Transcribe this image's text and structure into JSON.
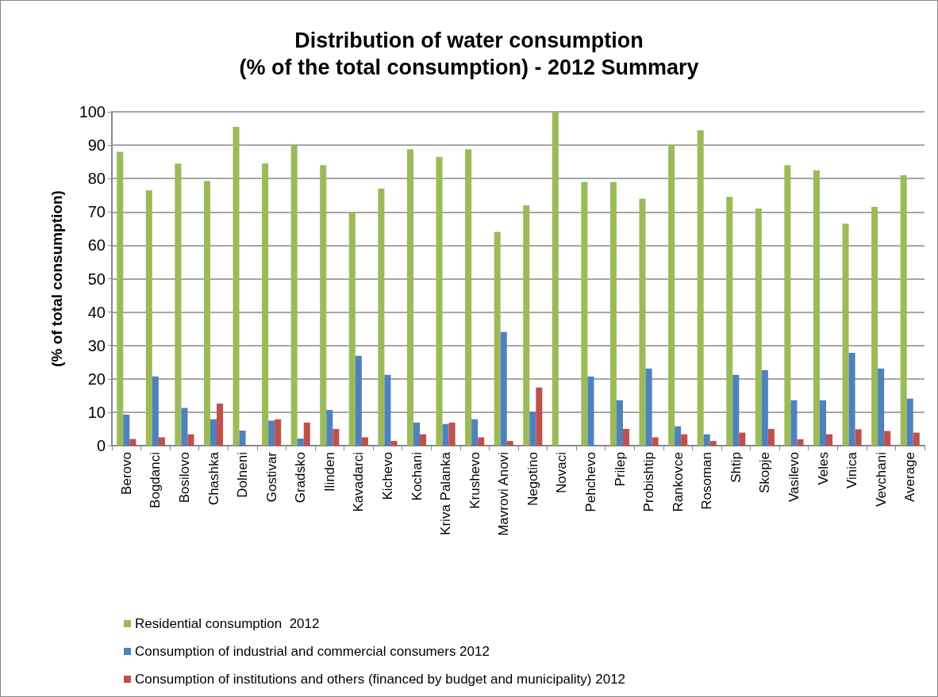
{
  "chart_data": {
    "type": "bar",
    "title": "Distribution of water consumption\n(% of the total consumption) - 2012 Summary",
    "ylabel": "(% of total consumption)",
    "categories": [
      "Berovo",
      "Bogdanci",
      "Bosilovo",
      "Chashka",
      "Dolneni",
      "Gostivar",
      "Gradsko",
      "Ilinden",
      "Kavadarci",
      "Kichevo",
      "Kochani",
      "Kriva Palanka",
      "Krushevo",
      "Mavrovi Anovi",
      "Negotino",
      "Novaci",
      "Pehchevo",
      "Prilep",
      "Probishtip",
      "Rankovce",
      "Rosoman",
      "Shtip",
      "Skopje",
      "Vasilevo",
      "Veles",
      "Vinica",
      "Vevchani",
      "Average"
    ],
    "series": [
      {
        "name": "Residential consumption  2012",
        "color": "#9bbb59",
        "values": [
          88,
          76.5,
          84.5,
          79.3,
          95.5,
          84.5,
          90,
          84,
          69.8,
          77,
          88.8,
          86.5,
          88.8,
          64,
          72,
          100,
          79,
          79,
          74,
          90,
          94.5,
          74.5,
          71,
          84,
          82.5,
          66.5,
          71.5,
          81
        ]
      },
      {
        "name": "Consumption of industrial and commercial consumers 2012",
        "color": "#4f81bd",
        "values": [
          9.3,
          20.7,
          11.3,
          7.9,
          4.5,
          7.5,
          2.1,
          10.7,
          26.9,
          21.2,
          6.9,
          6.5,
          7.9,
          34,
          10.2,
          0,
          20.7,
          13.6,
          23.1,
          5.8,
          3.4,
          21.2,
          22.6,
          13.6,
          13.6,
          27.8,
          23.1,
          14.1
        ]
      },
      {
        "name": "Consumption of institutions and others (financed by budget and municipality) 2012",
        "color": "#c0504d",
        "values": [
          2,
          2.5,
          3.4,
          12.6,
          0,
          7.9,
          6.9,
          5,
          2.5,
          1.4,
          3.4,
          6.9,
          2.5,
          1.4,
          17.4,
          0,
          0,
          5,
          2.5,
          3.4,
          1.4,
          3.9,
          5,
          1.9,
          3.4,
          4.9,
          4.4,
          3.9
        ]
      }
    ],
    "ylim": [
      0,
      100
    ],
    "yticks": [
      0,
      10,
      20,
      30,
      40,
      50,
      60,
      70,
      80,
      90,
      100
    ],
    "grid": "y",
    "legend": "bottom"
  }
}
